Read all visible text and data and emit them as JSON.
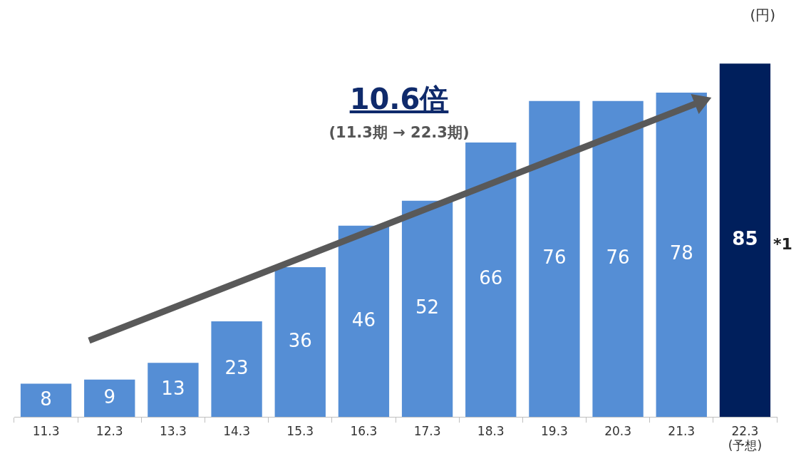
{
  "chart_data": {
    "type": "bar",
    "ylabel": "(円)",
    "categories": [
      "11.3",
      "12.3",
      "13.3",
      "14.3",
      "15.3",
      "16.3",
      "17.3",
      "18.3",
      "19.3",
      "20.3",
      "21.3",
      "22.3\n(予想)"
    ],
    "values": [
      8,
      9,
      13,
      23,
      36,
      46,
      52,
      66,
      76,
      76,
      78,
      85
    ],
    "colors": [
      "#558ed5",
      "#558ed5",
      "#558ed5",
      "#558ed5",
      "#558ed5",
      "#558ed5",
      "#558ed5",
      "#558ed5",
      "#558ed5",
      "#558ed5",
      "#558ed5",
      "#001f5c"
    ],
    "data_labels": true,
    "grid": false,
    "legend": false,
    "annotations": [
      "10.6倍",
      "(11.3期 → 22.3期)",
      "*1"
    ]
  }
}
